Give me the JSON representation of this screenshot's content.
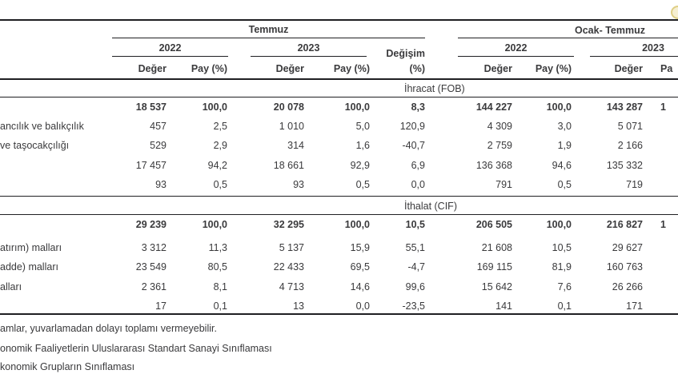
{
  "header": {
    "period_month": "Temmuz",
    "period_cum": "Ocak- Temmuz",
    "y2022": "2022",
    "y2023": "2023",
    "col_value": "Değer",
    "col_share": "Pay (%)",
    "col_change_1": "Değişim",
    "col_change_2": "(%)",
    "col_share_fragment": "Pa"
  },
  "table": {
    "ihracat": {
      "title": "İhracat (FOB)",
      "rows": [
        {
          "label": "",
          "bold": true,
          "c": [
            "18 537",
            "100,0",
            "20 078",
            "100,0",
            "8,3",
            "144 227",
            "100,0",
            "143 287",
            "1"
          ]
        },
        {
          "label": "ancılık ve balıkçılık",
          "bold": false,
          "c": [
            "457",
            "2,5",
            "1 010",
            "5,0",
            "120,9",
            "4 309",
            "3,0",
            "5 071",
            ""
          ]
        },
        {
          "label": "ve taşocakçılığı",
          "bold": false,
          "c": [
            "529",
            "2,9",
            "314",
            "1,6",
            "-40,7",
            "2 759",
            "1,9",
            "2 166",
            ""
          ]
        },
        {
          "label": "",
          "bold": false,
          "c": [
            "17 457",
            "94,2",
            "18 661",
            "92,9",
            "6,9",
            "136 368",
            "94,6",
            "135 332",
            ""
          ]
        },
        {
          "label": "",
          "bold": false,
          "c": [
            "93",
            "0,5",
            "93",
            "0,5",
            "0,0",
            "791",
            "0,5",
            "719",
            ""
          ]
        }
      ]
    },
    "ithalat": {
      "title": "İthalat (CIF)",
      "rows": [
        {
          "label": "",
          "bold": true,
          "c": [
            "29 239",
            "100,0",
            "32 295",
            "100,0",
            "10,5",
            "206 505",
            "100,0",
            "216 827",
            "1"
          ]
        },
        {
          "label": "atırım) malları",
          "bold": false,
          "c": [
            "3 312",
            "11,3",
            "5 137",
            "15,9",
            "55,1",
            "21 608",
            "10,5",
            "29 627",
            ""
          ]
        },
        {
          "label": "adde) malları",
          "bold": false,
          "c": [
            "23 549",
            "80,5",
            "22 433",
            "69,5",
            "-4,7",
            "169 115",
            "81,9",
            "160 763",
            ""
          ]
        },
        {
          "label": "alları",
          "bold": false,
          "c": [
            "2 361",
            "8,1",
            "4 713",
            "14,6",
            "99,6",
            "15 642",
            "7,6",
            "26 266",
            ""
          ]
        },
        {
          "label": "",
          "bold": false,
          "c": [
            "17",
            "0,1",
            "13",
            "0,0",
            "-23,5",
            "141",
            "0,1",
            "171",
            ""
          ]
        }
      ]
    }
  },
  "footnotes": [
    "amlar, yuvarlamadan dolayı toplamı vermeyebilir.",
    "onomik Faaliyetlerin Uluslararası Standart Sanayi Sınıflaması",
    "konomik Grupların Sınıflaması"
  ]
}
